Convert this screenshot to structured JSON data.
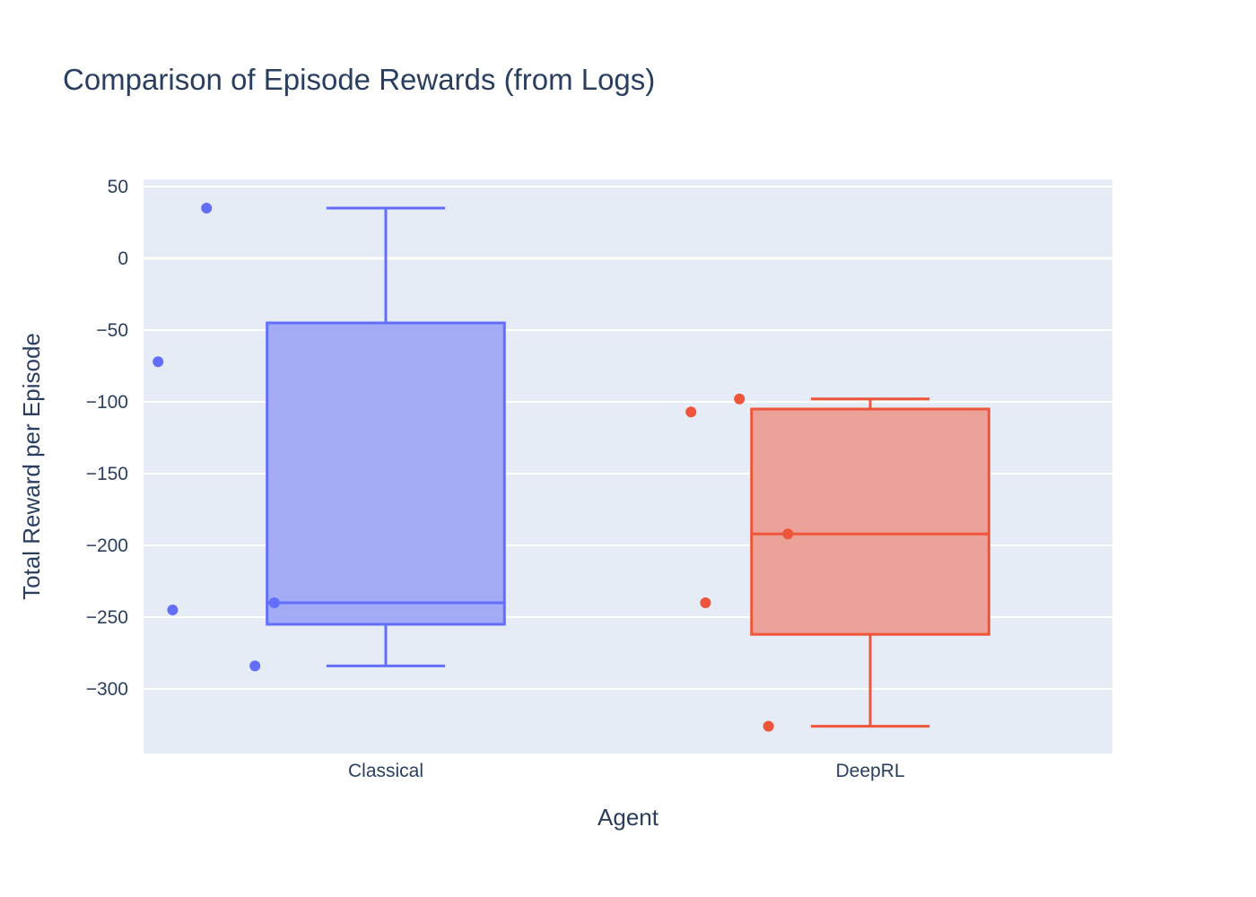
{
  "chart_data": {
    "type": "box",
    "title": "Comparison of Episode Rewards (from Logs)",
    "xlabel": "Agent",
    "ylabel": "Total Reward per Episode",
    "categories": [
      "Classical",
      "DeepRL"
    ],
    "ylim": [
      -345,
      55
    ],
    "yticks": [
      50,
      0,
      -50,
      -100,
      -150,
      -200,
      -250,
      -300
    ],
    "ytick_labels": [
      "50",
      "0",
      "−50",
      "−100",
      "−150",
      "−200",
      "−250",
      "−300"
    ],
    "grid": true,
    "series": [
      {
        "category": "Classical",
        "color": "#636efa",
        "fill": "#a3abf5",
        "points": [
          35,
          -72,
          -245,
          -240,
          -284
        ],
        "jitter": [
          0.13,
          0.03,
          0.06,
          0.27,
          0.23
        ],
        "min": -284,
        "q1": -255,
        "median": -240,
        "q3": -45,
        "max": 35
      },
      {
        "category": "DeepRL",
        "color": "#ef553b",
        "fill": "#eaa299",
        "points": [
          -98,
          -107,
          -192,
          -240,
          -326
        ],
        "jitter": [
          0.23,
          0.13,
          0.33,
          0.16,
          0.29
        ],
        "min": -326,
        "q1": -262,
        "median": -192,
        "q3": -105,
        "max": -98
      }
    ]
  }
}
